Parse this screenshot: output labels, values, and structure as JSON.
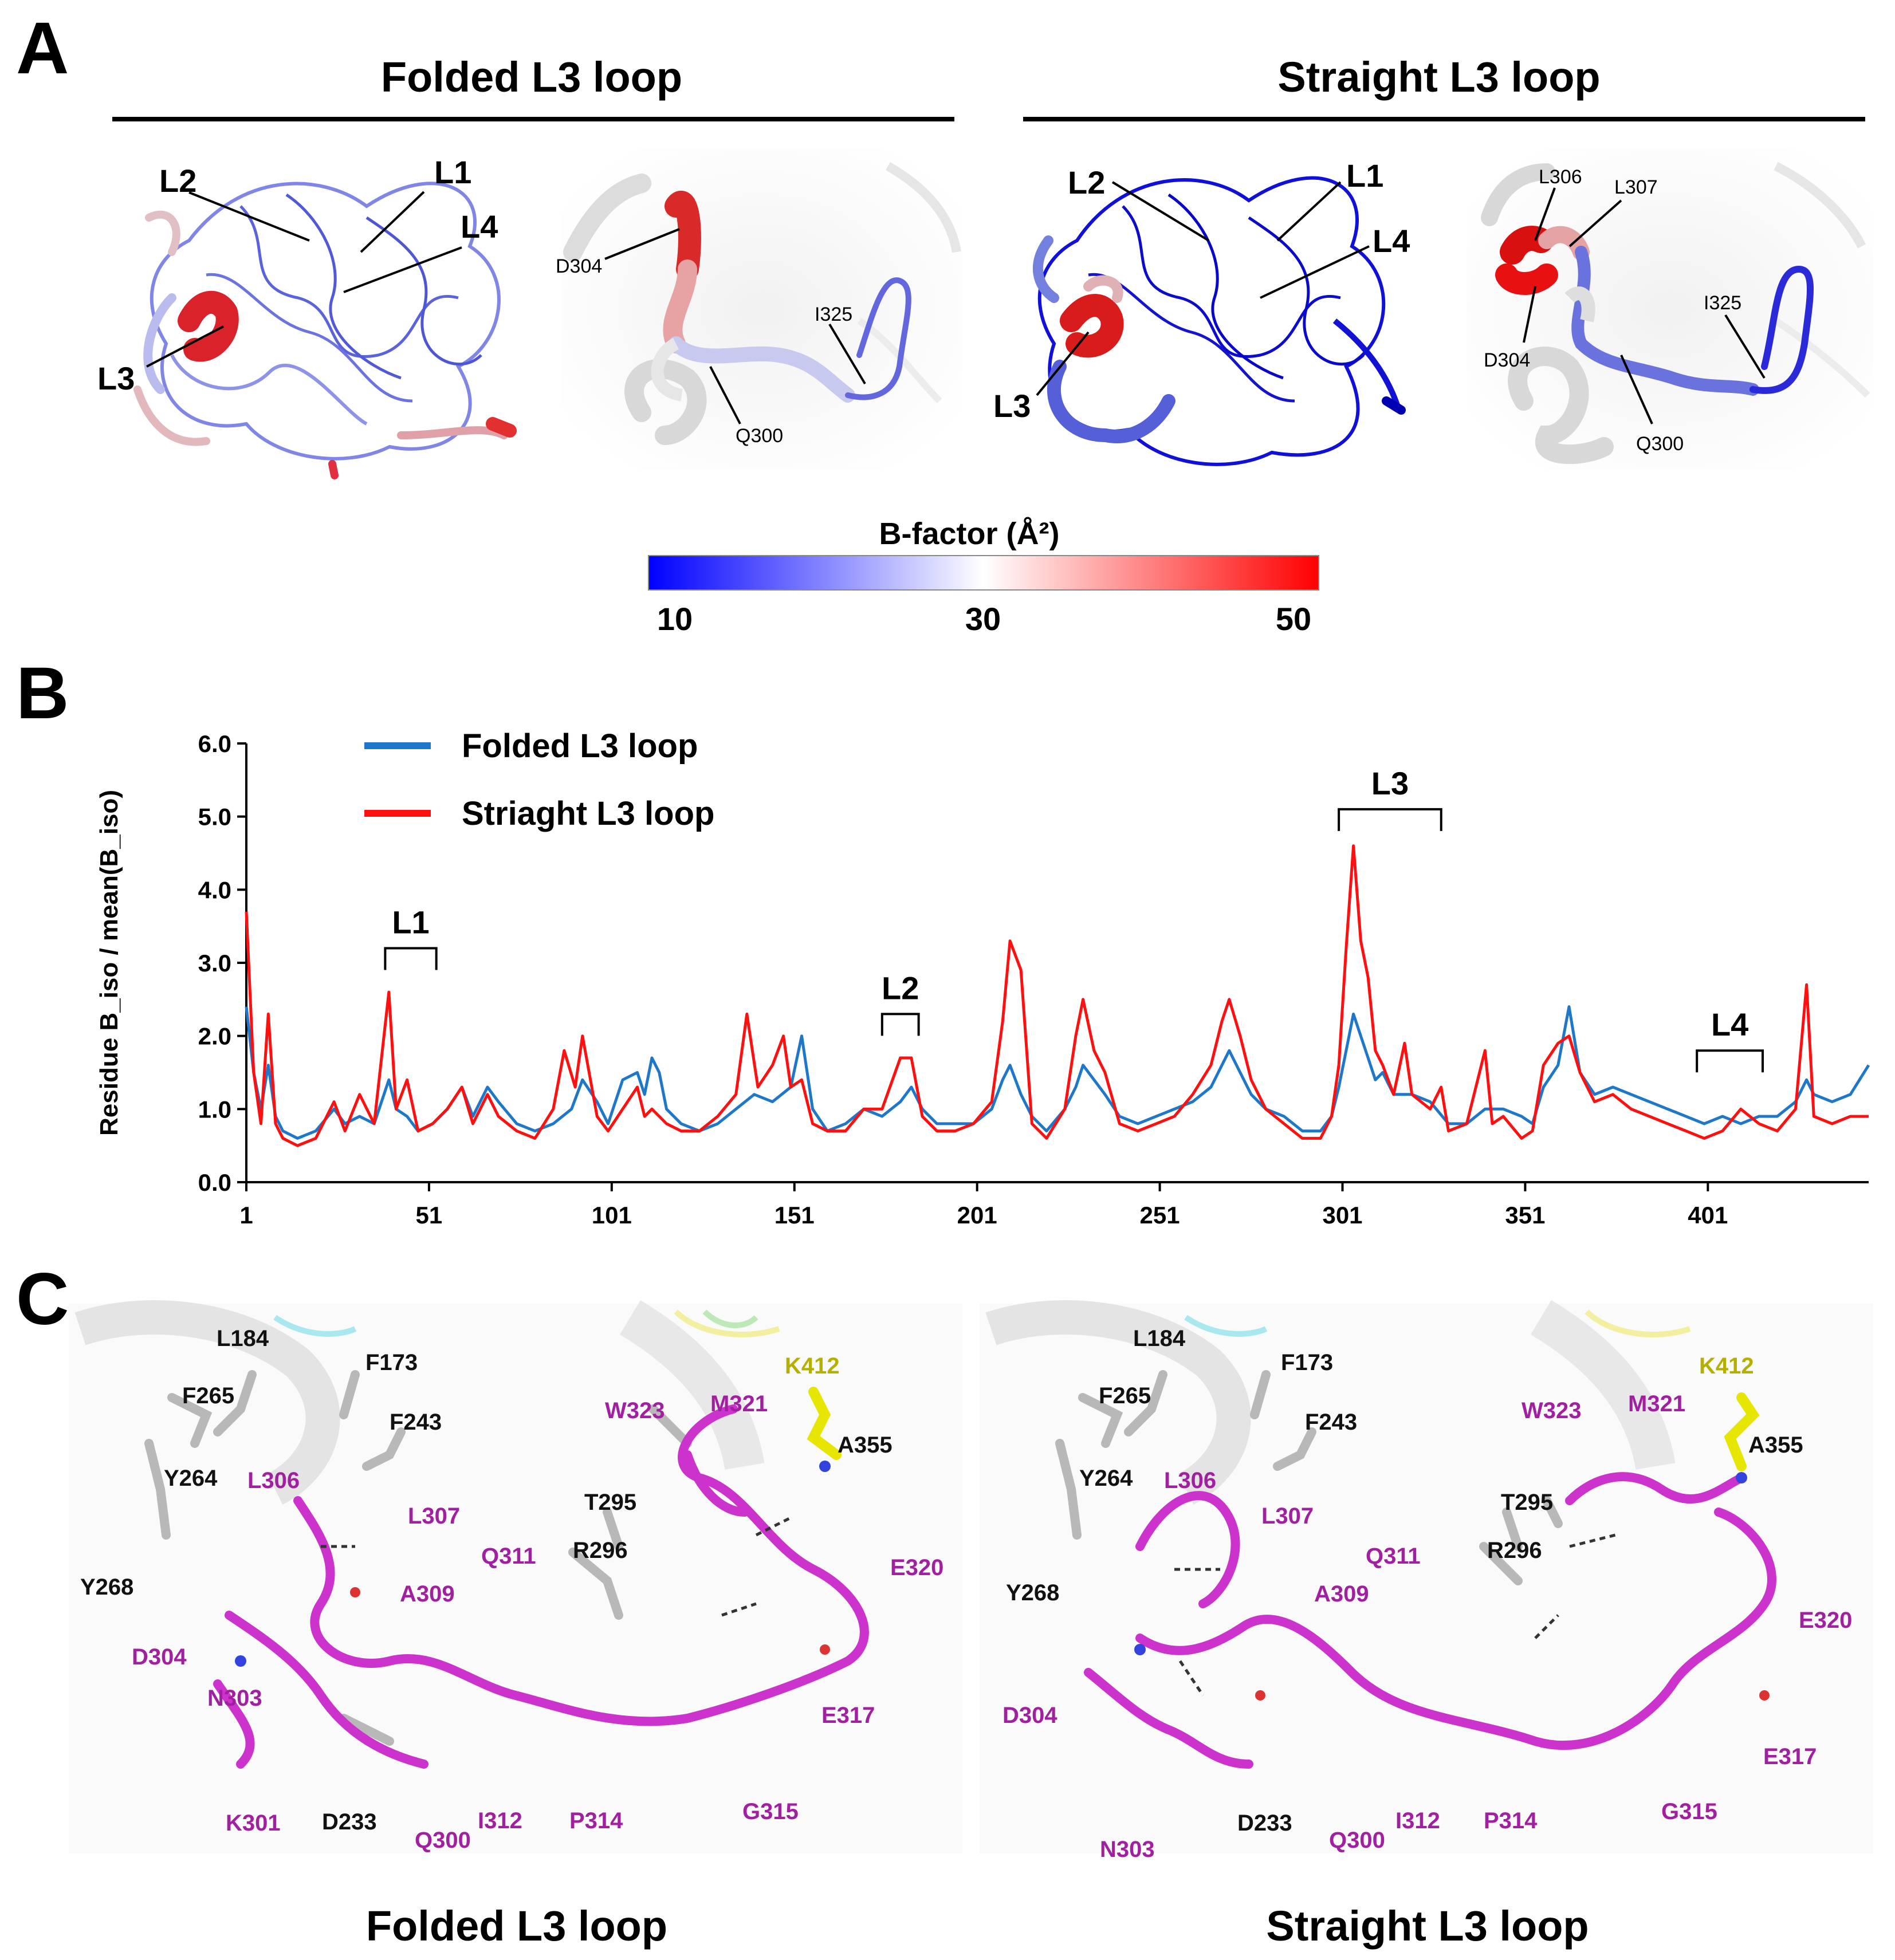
{
  "panels": {
    "a": "A",
    "b": "B",
    "c": "C"
  },
  "panel_a": {
    "left_header": "Folded L3 loop",
    "right_header": "Straight L3 loop",
    "loop_labels": [
      "L1",
      "L2",
      "L3",
      "L4"
    ],
    "zoom_left_labels": [
      "D304",
      "I325",
      "Q300"
    ],
    "zoom_right_labels": [
      "L306",
      "L307",
      "D304",
      "I325",
      "Q300"
    ],
    "colorbar": {
      "title": "B-factor (Å²)",
      "ticks": [
        "10",
        "30",
        "50"
      ],
      "low_color": "#0000ff",
      "mid_color": "#ffffff",
      "high_color": "#ff0000"
    }
  },
  "chart_data": {
    "type": "line",
    "title": "",
    "xlabel": "",
    "ylabel": "Residue B_iso / mean(B_iso)",
    "xlim": [
      1,
      445
    ],
    "ylim": [
      0.0,
      6.0
    ],
    "x_ticks": [
      "1",
      "51",
      "101",
      "151",
      "201",
      "251",
      "301",
      "351",
      "401"
    ],
    "y_ticks": [
      "0.0",
      "1.0",
      "2.0",
      "3.0",
      "4.0",
      "5.0",
      "6.0"
    ],
    "legend_position": "top-left",
    "series": [
      {
        "name": "Folded L3 loop",
        "color": "#1f77c9",
        "points": [
          [
            1,
            2.4
          ],
          [
            3,
            1.5
          ],
          [
            5,
            1.0
          ],
          [
            7,
            1.6
          ],
          [
            9,
            0.9
          ],
          [
            11,
            0.7
          ],
          [
            15,
            0.6
          ],
          [
            20,
            0.7
          ],
          [
            25,
            1.0
          ],
          [
            28,
            0.8
          ],
          [
            32,
            0.9
          ],
          [
            36,
            0.8
          ],
          [
            40,
            1.4
          ],
          [
            42,
            1.0
          ],
          [
            45,
            0.9
          ],
          [
            48,
            0.7
          ],
          [
            52,
            0.8
          ],
          [
            56,
            1.0
          ],
          [
            60,
            1.3
          ],
          [
            63,
            0.9
          ],
          [
            67,
            1.3
          ],
          [
            70,
            1.1
          ],
          [
            75,
            0.8
          ],
          [
            80,
            0.7
          ],
          [
            85,
            0.8
          ],
          [
            90,
            1.0
          ],
          [
            93,
            1.4
          ],
          [
            97,
            1.1
          ],
          [
            100,
            0.8
          ],
          [
            104,
            1.4
          ],
          [
            108,
            1.5
          ],
          [
            110,
            1.2
          ],
          [
            112,
            1.7
          ],
          [
            114,
            1.5
          ],
          [
            116,
            1.0
          ],
          [
            120,
            0.8
          ],
          [
            125,
            0.7
          ],
          [
            130,
            0.8
          ],
          [
            135,
            1.0
          ],
          [
            140,
            1.2
          ],
          [
            145,
            1.1
          ],
          [
            150,
            1.3
          ],
          [
            153,
            2.0
          ],
          [
            156,
            1.0
          ],
          [
            160,
            0.7
          ],
          [
            165,
            0.8
          ],
          [
            170,
            1.0
          ],
          [
            175,
            0.9
          ],
          [
            180,
            1.1
          ],
          [
            183,
            1.3
          ],
          [
            186,
            1.0
          ],
          [
            190,
            0.8
          ],
          [
            195,
            0.8
          ],
          [
            200,
            0.8
          ],
          [
            205,
            1.0
          ],
          [
            208,
            1.4
          ],
          [
            210,
            1.6
          ],
          [
            213,
            1.2
          ],
          [
            216,
            0.9
          ],
          [
            220,
            0.7
          ],
          [
            225,
            1.0
          ],
          [
            228,
            1.3
          ],
          [
            230,
            1.6
          ],
          [
            233,
            1.4
          ],
          [
            236,
            1.2
          ],
          [
            240,
            0.9
          ],
          [
            245,
            0.8
          ],
          [
            250,
            0.9
          ],
          [
            255,
            1.0
          ],
          [
            260,
            1.1
          ],
          [
            265,
            1.3
          ],
          [
            268,
            1.6
          ],
          [
            270,
            1.8
          ],
          [
            273,
            1.5
          ],
          [
            276,
            1.2
          ],
          [
            280,
            1.0
          ],
          [
            285,
            0.9
          ],
          [
            290,
            0.7
          ],
          [
            295,
            0.7
          ],
          [
            298,
            0.9
          ],
          [
            300,
            1.3
          ],
          [
            302,
            1.8
          ],
          [
            304,
            2.3
          ],
          [
            306,
            2.0
          ],
          [
            308,
            1.7
          ],
          [
            310,
            1.4
          ],
          [
            312,
            1.5
          ],
          [
            315,
            1.2
          ],
          [
            320,
            1.2
          ],
          [
            325,
            1.1
          ],
          [
            330,
            0.8
          ],
          [
            335,
            0.8
          ],
          [
            340,
            1.0
          ],
          [
            345,
            1.0
          ],
          [
            350,
            0.9
          ],
          [
            353,
            0.8
          ],
          [
            356,
            1.3
          ],
          [
            360,
            1.6
          ],
          [
            363,
            2.4
          ],
          [
            366,
            1.5
          ],
          [
            370,
            1.2
          ],
          [
            375,
            1.3
          ],
          [
            380,
            1.2
          ],
          [
            385,
            1.1
          ],
          [
            390,
            1.0
          ],
          [
            395,
            0.9
          ],
          [
            400,
            0.8
          ],
          [
            405,
            0.9
          ],
          [
            410,
            0.8
          ],
          [
            415,
            0.9
          ],
          [
            420,
            0.9
          ],
          [
            425,
            1.1
          ],
          [
            428,
            1.4
          ],
          [
            430,
            1.2
          ],
          [
            435,
            1.1
          ],
          [
            440,
            1.2
          ],
          [
            445,
            1.6
          ]
        ]
      },
      {
        "name": "Striaght L3 loop",
        "color": "#ff1010",
        "points": [
          [
            1,
            3.7
          ],
          [
            3,
            1.5
          ],
          [
            5,
            0.8
          ],
          [
            7,
            2.3
          ],
          [
            9,
            0.8
          ],
          [
            11,
            0.6
          ],
          [
            15,
            0.5
          ],
          [
            20,
            0.6
          ],
          [
            25,
            1.1
          ],
          [
            28,
            0.7
          ],
          [
            32,
            1.2
          ],
          [
            36,
            0.8
          ],
          [
            40,
            2.6
          ],
          [
            42,
            1.0
          ],
          [
            45,
            1.4
          ],
          [
            48,
            0.7
          ],
          [
            52,
            0.8
          ],
          [
            56,
            1.0
          ],
          [
            60,
            1.3
          ],
          [
            63,
            0.8
          ],
          [
            67,
            1.2
          ],
          [
            70,
            0.9
          ],
          [
            75,
            0.7
          ],
          [
            80,
            0.6
          ],
          [
            85,
            1.0
          ],
          [
            88,
            1.8
          ],
          [
            91,
            1.3
          ],
          [
            93,
            2.0
          ],
          [
            97,
            0.9
          ],
          [
            100,
            0.7
          ],
          [
            104,
            1.0
          ],
          [
            108,
            1.3
          ],
          [
            110,
            0.9
          ],
          [
            112,
            1.0
          ],
          [
            116,
            0.8
          ],
          [
            120,
            0.7
          ],
          [
            125,
            0.7
          ],
          [
            130,
            0.9
          ],
          [
            135,
            1.2
          ],
          [
            138,
            2.3
          ],
          [
            141,
            1.3
          ],
          [
            145,
            1.6
          ],
          [
            148,
            2.0
          ],
          [
            150,
            1.3
          ],
          [
            153,
            1.4
          ],
          [
            156,
            0.8
          ],
          [
            160,
            0.7
          ],
          [
            165,
            0.7
          ],
          [
            170,
            1.0
          ],
          [
            175,
            1.0
          ],
          [
            180,
            1.7
          ],
          [
            183,
            1.7
          ],
          [
            186,
            0.9
          ],
          [
            190,
            0.7
          ],
          [
            195,
            0.7
          ],
          [
            200,
            0.8
          ],
          [
            205,
            1.1
          ],
          [
            208,
            2.2
          ],
          [
            210,
            3.3
          ],
          [
            213,
            2.9
          ],
          [
            216,
            0.8
          ],
          [
            220,
            0.6
          ],
          [
            225,
            1.0
          ],
          [
            228,
            2.0
          ],
          [
            230,
            2.5
          ],
          [
            233,
            1.8
          ],
          [
            236,
            1.5
          ],
          [
            240,
            0.8
          ],
          [
            245,
            0.7
          ],
          [
            250,
            0.8
          ],
          [
            255,
            0.9
          ],
          [
            260,
            1.2
          ],
          [
            265,
            1.6
          ],
          [
            268,
            2.2
          ],
          [
            270,
            2.5
          ],
          [
            273,
            2.0
          ],
          [
            276,
            1.4
          ],
          [
            280,
            1.0
          ],
          [
            285,
            0.8
          ],
          [
            290,
            0.6
          ],
          [
            295,
            0.6
          ],
          [
            298,
            0.9
          ],
          [
            300,
            1.6
          ],
          [
            302,
            3.2
          ],
          [
            304,
            4.6
          ],
          [
            306,
            3.3
          ],
          [
            308,
            2.8
          ],
          [
            310,
            1.8
          ],
          [
            312,
            1.6
          ],
          [
            315,
            1.2
          ],
          [
            318,
            1.9
          ],
          [
            320,
            1.2
          ],
          [
            325,
            1.0
          ],
          [
            328,
            1.3
          ],
          [
            330,
            0.7
          ],
          [
            335,
            0.8
          ],
          [
            340,
            1.8
          ],
          [
            342,
            0.8
          ],
          [
            345,
            0.9
          ],
          [
            350,
            0.6
          ],
          [
            353,
            0.7
          ],
          [
            356,
            1.6
          ],
          [
            360,
            1.9
          ],
          [
            363,
            2.0
          ],
          [
            366,
            1.5
          ],
          [
            370,
            1.1
          ],
          [
            375,
            1.2
          ],
          [
            380,
            1.0
          ],
          [
            385,
            0.9
          ],
          [
            390,
            0.8
          ],
          [
            395,
            0.7
          ],
          [
            400,
            0.6
          ],
          [
            405,
            0.7
          ],
          [
            410,
            1.0
          ],
          [
            415,
            0.8
          ],
          [
            420,
            0.7
          ],
          [
            425,
            1.0
          ],
          [
            428,
            2.7
          ],
          [
            430,
            0.9
          ],
          [
            435,
            0.8
          ],
          [
            440,
            0.9
          ],
          [
            445,
            0.9
          ]
        ]
      }
    ],
    "annotations": [
      {
        "label": "L1",
        "x_start": 39,
        "x_end": 53,
        "y": 3.2
      },
      {
        "label": "L2",
        "x_start": 175,
        "x_end": 185,
        "y": 2.3
      },
      {
        "label": "L3",
        "x_start": 300,
        "x_end": 328,
        "y": 5.1
      },
      {
        "label": "L4",
        "x_start": 398,
        "x_end": 416,
        "y": 1.8
      }
    ]
  },
  "panel_c": {
    "left_caption": "Folded L3 loop",
    "right_caption": "Straight L3 loop",
    "left_labels": {
      "gray": [
        "L184",
        "F173",
        "F265",
        "F243",
        "Y264",
        "Y268",
        "T295",
        "R296",
        "A355",
        "D233"
      ],
      "yellow": [
        "K412"
      ],
      "magenta": [
        "W323",
        "M321",
        "L306",
        "L307",
        "Q311",
        "A309",
        "D304",
        "N303",
        "E320",
        "E317",
        "K301",
        "Q300",
        "I312",
        "P314",
        "G315"
      ]
    },
    "right_labels": {
      "gray": [
        "L184",
        "F173",
        "F265",
        "F243",
        "Y264",
        "Y268",
        "T295",
        "R296",
        "A355",
        "D233"
      ],
      "yellow": [
        "K412"
      ],
      "magenta": [
        "W323",
        "M321",
        "L306",
        "L307",
        "Q311",
        "A309",
        "D304",
        "E320",
        "E317",
        "N303",
        "Q300",
        "I312",
        "P314",
        "G315"
      ]
    }
  }
}
